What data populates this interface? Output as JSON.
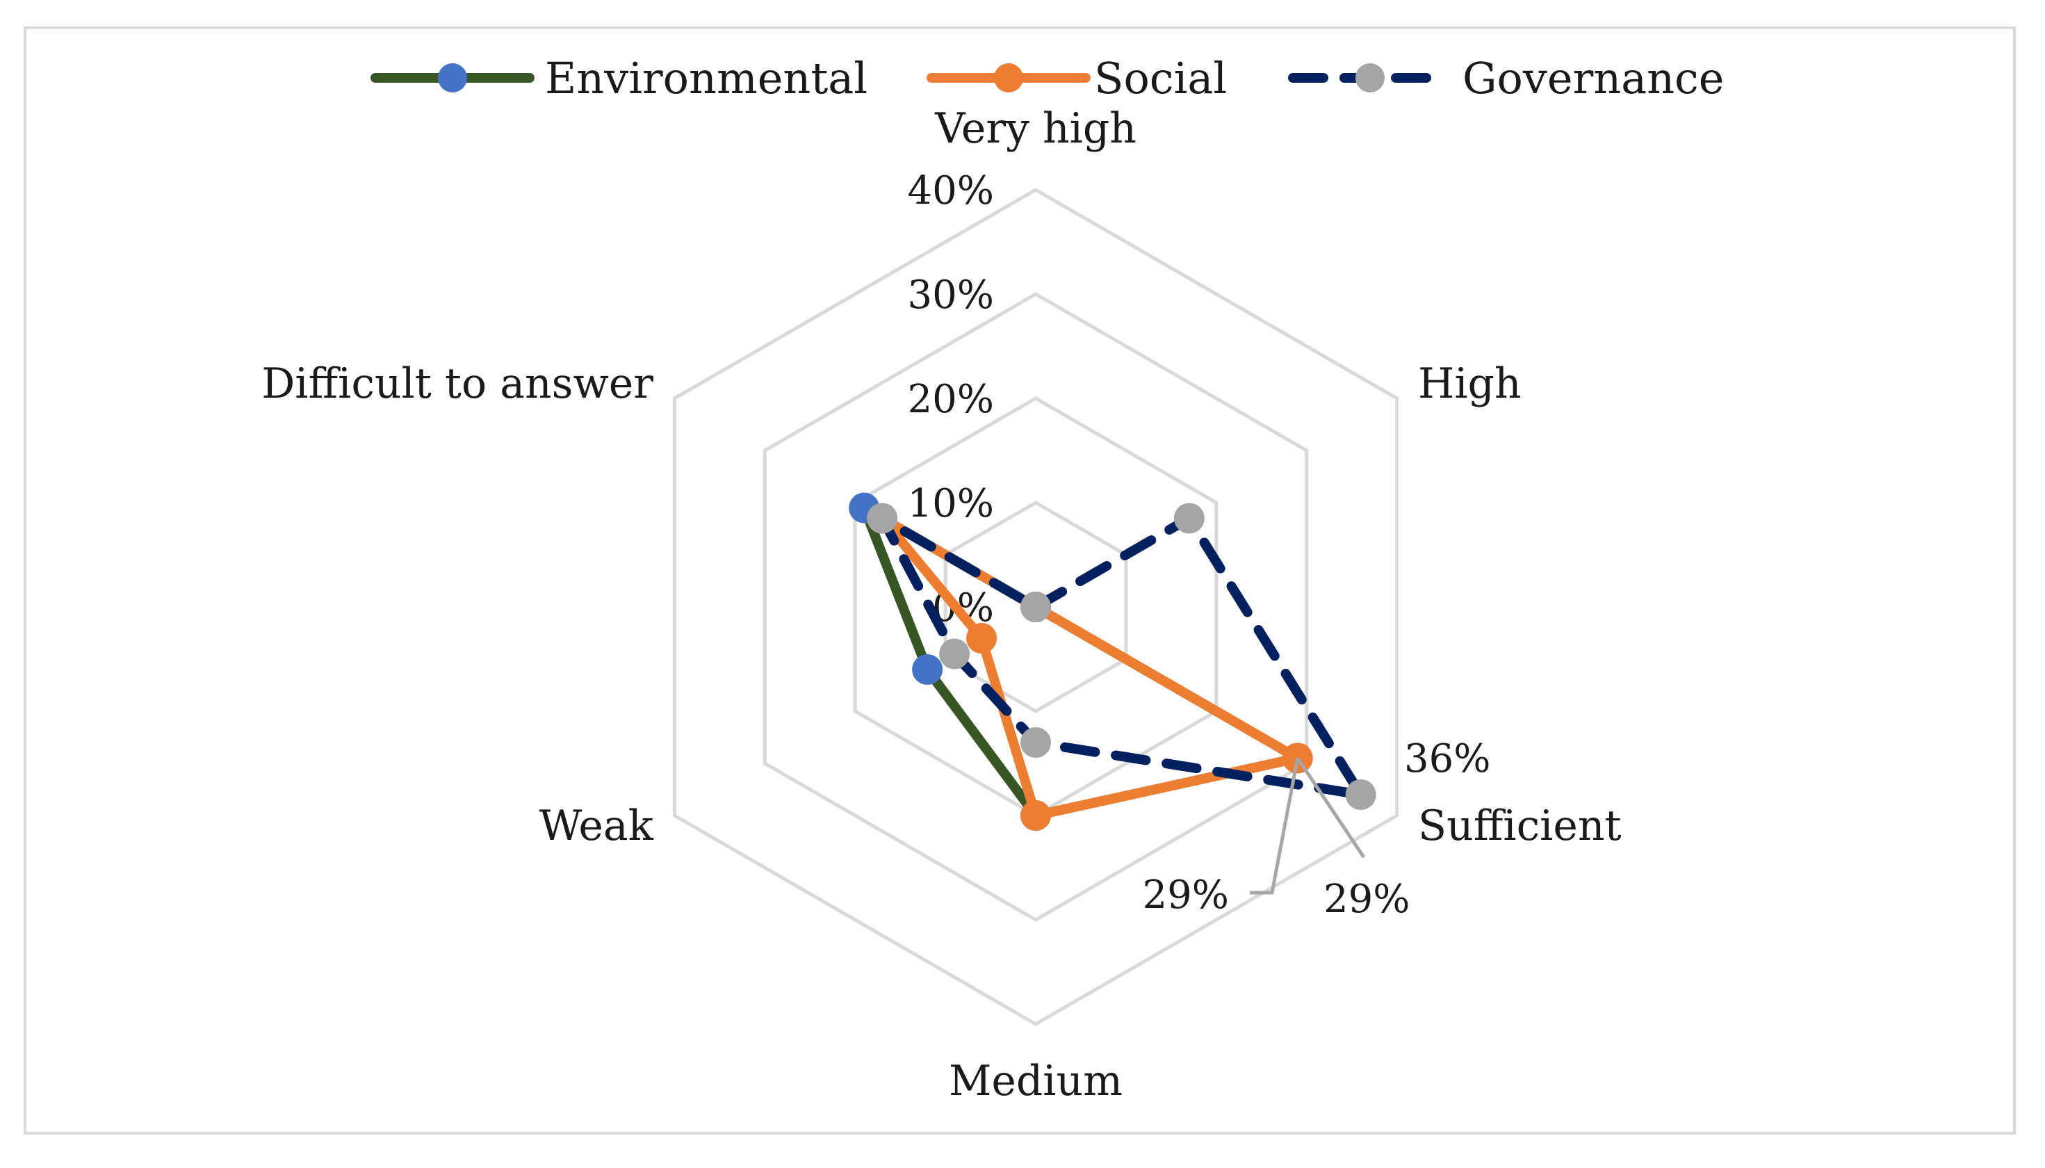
{
  "chart_data": {
    "type": "radar",
    "title": "",
    "categories": [
      "Very high",
      "High",
      "Sufficient",
      "Medium",
      "Weak",
      "Difficult to answer"
    ],
    "rlim": [
      0,
      40
    ],
    "r_ticks": [
      "0%",
      "10%",
      "20%",
      "30%",
      "40%"
    ],
    "r_tick_values": [
      0,
      10,
      20,
      30,
      40
    ],
    "series": [
      {
        "name": "Environmental",
        "values": [
          0,
          0,
          29,
          20,
          12,
          19
        ],
        "line_color": "#375623",
        "marker_color": "#4472c4",
        "dash": false
      },
      {
        "name": "Social",
        "values": [
          0,
          0,
          29,
          20,
          6,
          17
        ],
        "line_color": "#ed7d31",
        "marker_color": "#ed7d31",
        "dash": false
      },
      {
        "name": "Governance",
        "values": [
          0,
          17,
          36,
          13,
          9,
          17
        ],
        "line_color": "#002060",
        "marker_color": "#a5a5a5",
        "dash": true
      }
    ],
    "data_labels": [
      "29%",
      "29%",
      "36%"
    ],
    "legend_position": "top"
  },
  "colors": {
    "grid": "#d9d9d9",
    "leader": "#a6a6a6"
  }
}
